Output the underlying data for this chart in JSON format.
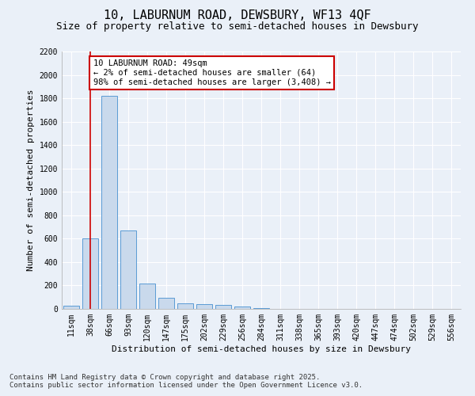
{
  "title1": "10, LABURNUM ROAD, DEWSBURY, WF13 4QF",
  "title2": "Size of property relative to semi-detached houses in Dewsbury",
  "xlabel": "Distribution of semi-detached houses by size in Dewsbury",
  "ylabel": "Number of semi-detached properties",
  "categories": [
    "11sqm",
    "38sqm",
    "66sqm",
    "93sqm",
    "120sqm",
    "147sqm",
    "175sqm",
    "202sqm",
    "229sqm",
    "256sqm",
    "284sqm",
    "311sqm",
    "338sqm",
    "365sqm",
    "393sqm",
    "420sqm",
    "447sqm",
    "474sqm",
    "502sqm",
    "529sqm",
    "556sqm"
  ],
  "values": [
    25,
    600,
    1820,
    670,
    215,
    95,
    48,
    40,
    35,
    20,
    5,
    2,
    0,
    0,
    0,
    0,
    0,
    0,
    0,
    0,
    0
  ],
  "bar_color": "#c9d9ec",
  "bar_edge_color": "#5b9bd5",
  "annotation_text": "10 LABURNUM ROAD: 49sqm\n← 2% of semi-detached houses are smaller (64)\n98% of semi-detached houses are larger (3,408) →",
  "annotation_box_color": "#ffffff",
  "annotation_box_edge_color": "#cc0000",
  "vline_color": "#cc0000",
  "vline_x": 1.0,
  "ylim": [
    0,
    2200
  ],
  "yticks": [
    0,
    200,
    400,
    600,
    800,
    1000,
    1200,
    1400,
    1600,
    1800,
    2000,
    2200
  ],
  "footer1": "Contains HM Land Registry data © Crown copyright and database right 2025.",
  "footer2": "Contains public sector information licensed under the Open Government Licence v3.0.",
  "bg_color": "#eaf0f8",
  "grid_color": "#ffffff",
  "title1_fontsize": 11,
  "title2_fontsize": 9,
  "xlabel_fontsize": 8,
  "ylabel_fontsize": 8,
  "tick_fontsize": 7,
  "annotation_fontsize": 7.5,
  "footer_fontsize": 6.5
}
